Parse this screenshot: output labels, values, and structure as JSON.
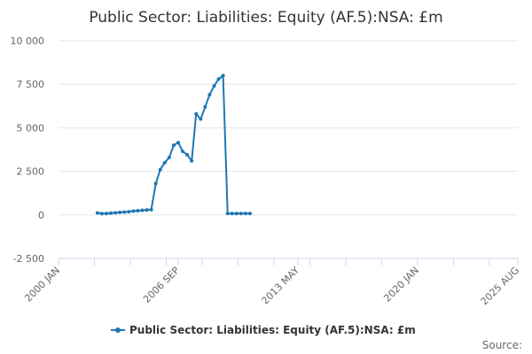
{
  "chart_data": {
    "type": "line",
    "title": "Public Sector: Liabilities: Equity (AF.5):NSA: £m",
    "xlabel": "",
    "ylabel": "",
    "x_range": [
      "2000-01",
      "2025-08"
    ],
    "x_ticks": [
      {
        "label": "2000 JAN",
        "date": "2000-01"
      },
      {
        "label": "2006 SEP",
        "date": "2006-09"
      },
      {
        "label": "2013 MAY",
        "date": "2013-05"
      },
      {
        "label": "2020 JAN",
        "date": "2020-01"
      },
      {
        "label": "2025 AUG",
        "date": "2025-08"
      }
    ],
    "ylim": [
      -2500,
      10000
    ],
    "y_ticks": [
      {
        "value": -2500,
        "label": "-2 500"
      },
      {
        "value": 0,
        "label": "0"
      },
      {
        "value": 2500,
        "label": "2 500"
      },
      {
        "value": 5000,
        "label": "5 000"
      },
      {
        "value": 7500,
        "label": "7 500"
      },
      {
        "value": 10000,
        "label": "10 000"
      }
    ],
    "grid": true,
    "legend_position": "bottom",
    "colors": {
      "series": "#1f77b4",
      "grid": "#e6e6e6",
      "axis": "#ccd6eb"
    },
    "series": [
      {
        "name": "Public Sector: Liabilities: Equity (AF.5):NSA: £m",
        "points": [
          {
            "x": "2002-03",
            "y": 110
          },
          {
            "x": "2002-06",
            "y": 70
          },
          {
            "x": "2002-09",
            "y": 80
          },
          {
            "x": "2002-12",
            "y": 100
          },
          {
            "x": "2003-03",
            "y": 120
          },
          {
            "x": "2003-06",
            "y": 140
          },
          {
            "x": "2003-09",
            "y": 160
          },
          {
            "x": "2003-12",
            "y": 180
          },
          {
            "x": "2004-03",
            "y": 220
          },
          {
            "x": "2004-06",
            "y": 240
          },
          {
            "x": "2004-09",
            "y": 260
          },
          {
            "x": "2004-12",
            "y": 280
          },
          {
            "x": "2005-03",
            "y": 300
          },
          {
            "x": "2005-06",
            "y": 1800
          },
          {
            "x": "2005-09",
            "y": 2600
          },
          {
            "x": "2005-12",
            "y": 3000
          },
          {
            "x": "2006-03",
            "y": 3300
          },
          {
            "x": "2006-06",
            "y": 4000
          },
          {
            "x": "2006-09",
            "y": 4150
          },
          {
            "x": "2006-12",
            "y": 3650
          },
          {
            "x": "2007-03",
            "y": 3450
          },
          {
            "x": "2007-06",
            "y": 3100
          },
          {
            "x": "2007-09",
            "y": 5800
          },
          {
            "x": "2007-12",
            "y": 5500
          },
          {
            "x": "2008-03",
            "y": 6200
          },
          {
            "x": "2008-06",
            "y": 6900
          },
          {
            "x": "2008-09",
            "y": 7400
          },
          {
            "x": "2008-12",
            "y": 7800
          },
          {
            "x": "2009-03",
            "y": 8000
          },
          {
            "x": "2009-06",
            "y": 80
          },
          {
            "x": "2009-09",
            "y": 80
          },
          {
            "x": "2009-12",
            "y": 80
          },
          {
            "x": "2010-03",
            "y": 80
          },
          {
            "x": "2010-06",
            "y": 80
          },
          {
            "x": "2010-09",
            "y": 80
          }
        ]
      }
    ]
  },
  "credit": "Source:"
}
